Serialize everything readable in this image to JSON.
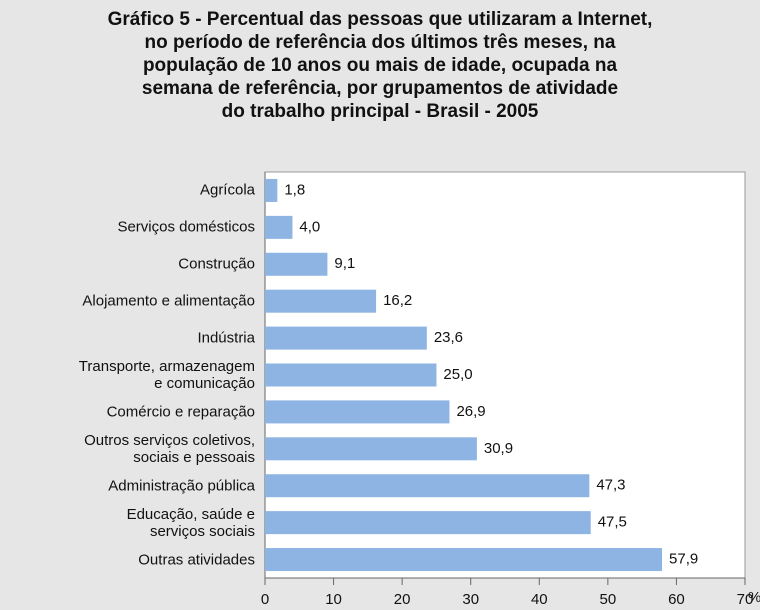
{
  "chart_data": {
    "type": "barh",
    "title": "Gráfico 5 - Percentual das pessoas que utilizaram a Internet,\nno período de referência dos últimos três meses, na\npopulação de 10 anos ou mais de idade, ocupada na\nsemana de referência, por grupamentos de atividade\ndo trabalho principal - Brasil - 2005",
    "xlabel": "%",
    "categories": [
      "Agrícola",
      "Serviços domésticos",
      "Construção",
      "Alojamento e alimentação",
      "Indústria",
      "Transporte, armazenagem\ne comunicação",
      "Comércio e reparação",
      "Outros serviços coletivos,\nsociais e pessoais",
      "Administração pública",
      "Educação, saúde e\nserviços sociais",
      "Outras atividades"
    ],
    "values": [
      1.8,
      4.0,
      9.1,
      16.2,
      23.6,
      25.0,
      26.9,
      30.9,
      47.3,
      47.5,
      57.9
    ],
    "value_labels": [
      "1,8",
      "4,0",
      "9,1",
      "16,2",
      "23,6",
      "25,0",
      "26,9",
      "30,9",
      "47,3",
      "47,5",
      "57,9"
    ],
    "color": "#8db4e2",
    "xlim": [
      0,
      70
    ],
    "xticks": [
      0,
      10,
      20,
      30,
      40,
      50,
      60,
      70
    ]
  }
}
